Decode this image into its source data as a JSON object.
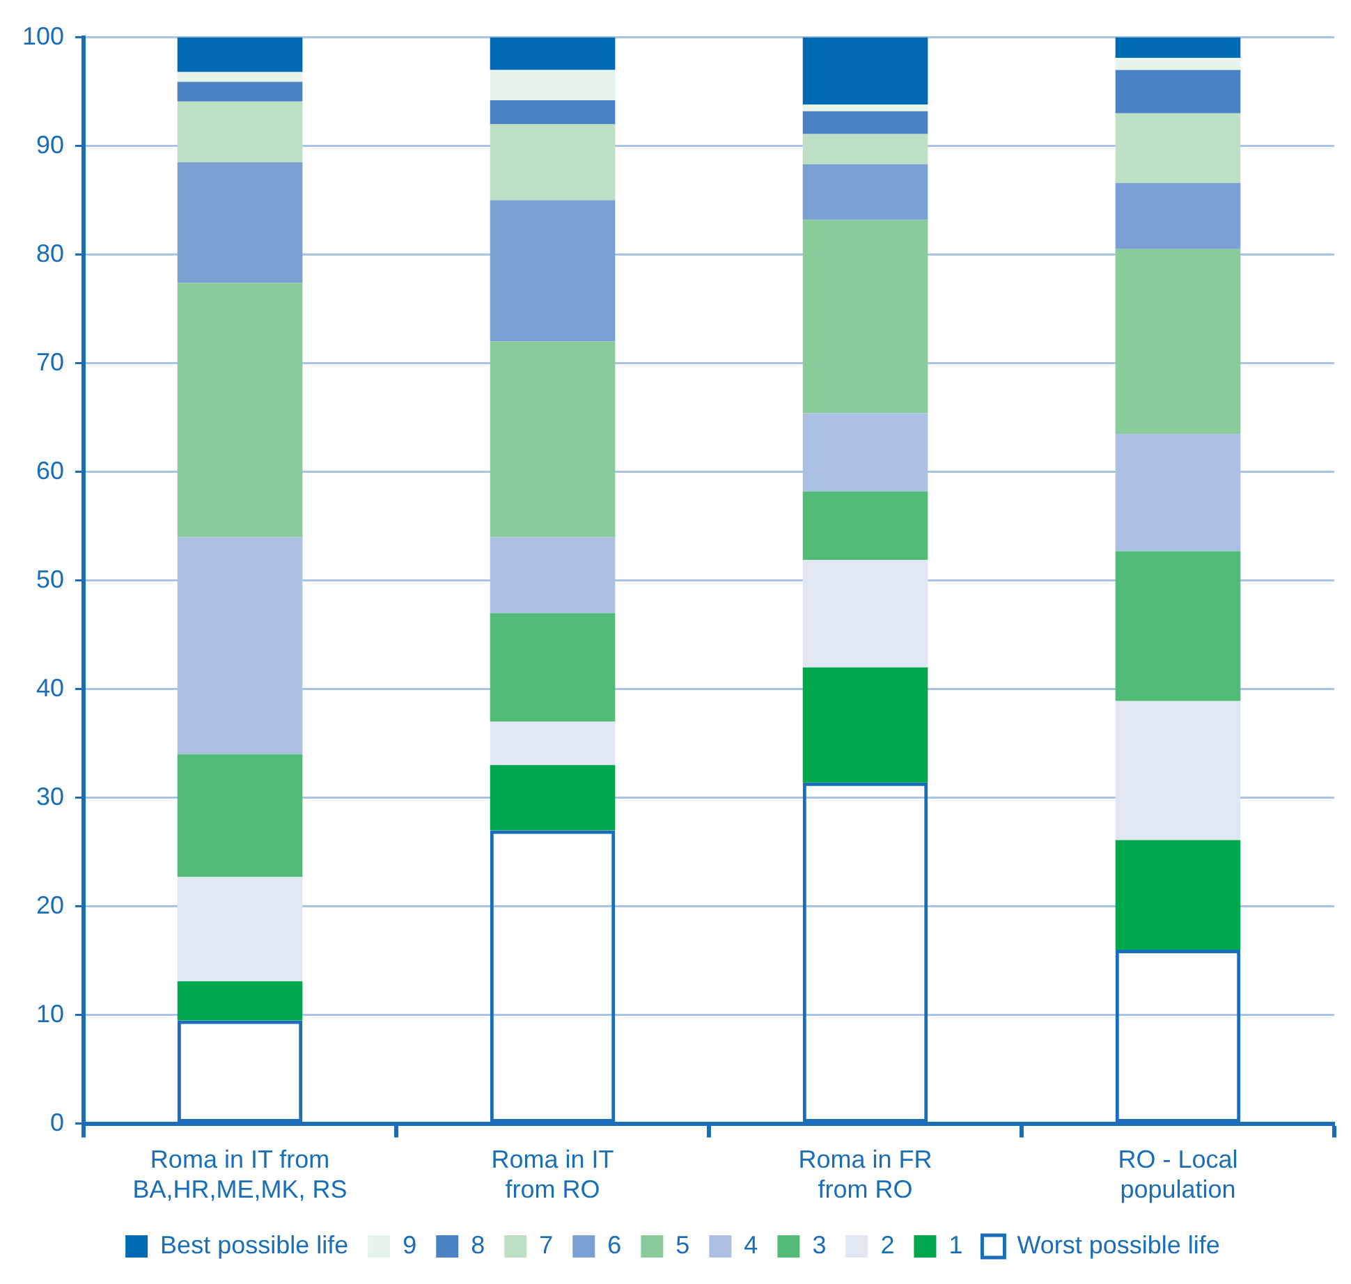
{
  "chart_data": {
    "type": "bar",
    "stacked": true,
    "categories": [
      "Roma in IT from BA,HR,ME,MK, RS",
      "Roma in IT from RO",
      "Roma in FR from RO",
      "RO - Local population"
    ],
    "ylim": [
      0,
      100
    ],
    "yticks": [
      0,
      10,
      20,
      30,
      40,
      50,
      60,
      70,
      80,
      90,
      100
    ],
    "grid": "y",
    "legend": "bottom",
    "series": [
      {
        "name": "Worst possible life",
        "color": "#1a6db8",
        "values": [
          9.5,
          27,
          31.4,
          16
        ]
      },
      {
        "name": "1",
        "color": "#00a74c",
        "values": [
          3.6,
          6,
          10.6,
          10.1
        ]
      },
      {
        "name": "2",
        "color": "#e0e7f3",
        "values": [
          9.6,
          4,
          9.9,
          12.8
        ]
      },
      {
        "name": "3",
        "color": "#52bb78",
        "values": [
          11.3,
          10,
          6.3,
          13.8
        ]
      },
      {
        "name": "4",
        "color": "#abc0e2",
        "values": [
          20,
          7,
          7.2,
          10.8
        ]
      },
      {
        "name": "5",
        "color": "#89cc9a",
        "values": [
          23.4,
          18,
          17.8,
          17
        ]
      },
      {
        "name": "6",
        "color": "#7aa0d4",
        "values": [
          11.1,
          13,
          5.1,
          6.1
        ]
      },
      {
        "name": "7",
        "color": "#bde0c5",
        "values": [
          5.6,
          7,
          2.8,
          6.4
        ]
      },
      {
        "name": "8",
        "color": "#4a82c3",
        "values": [
          1.8,
          2.2,
          2.1,
          4
        ]
      },
      {
        "name": "9",
        "color": "#e6f4ea",
        "values": [
          0.9,
          2.8,
          0.6,
          1.1
        ]
      },
      {
        "name": "Best possible life",
        "color": "#0069b4",
        "values": [
          3.2,
          3,
          6.2,
          1.9
        ]
      }
    ]
  }
}
